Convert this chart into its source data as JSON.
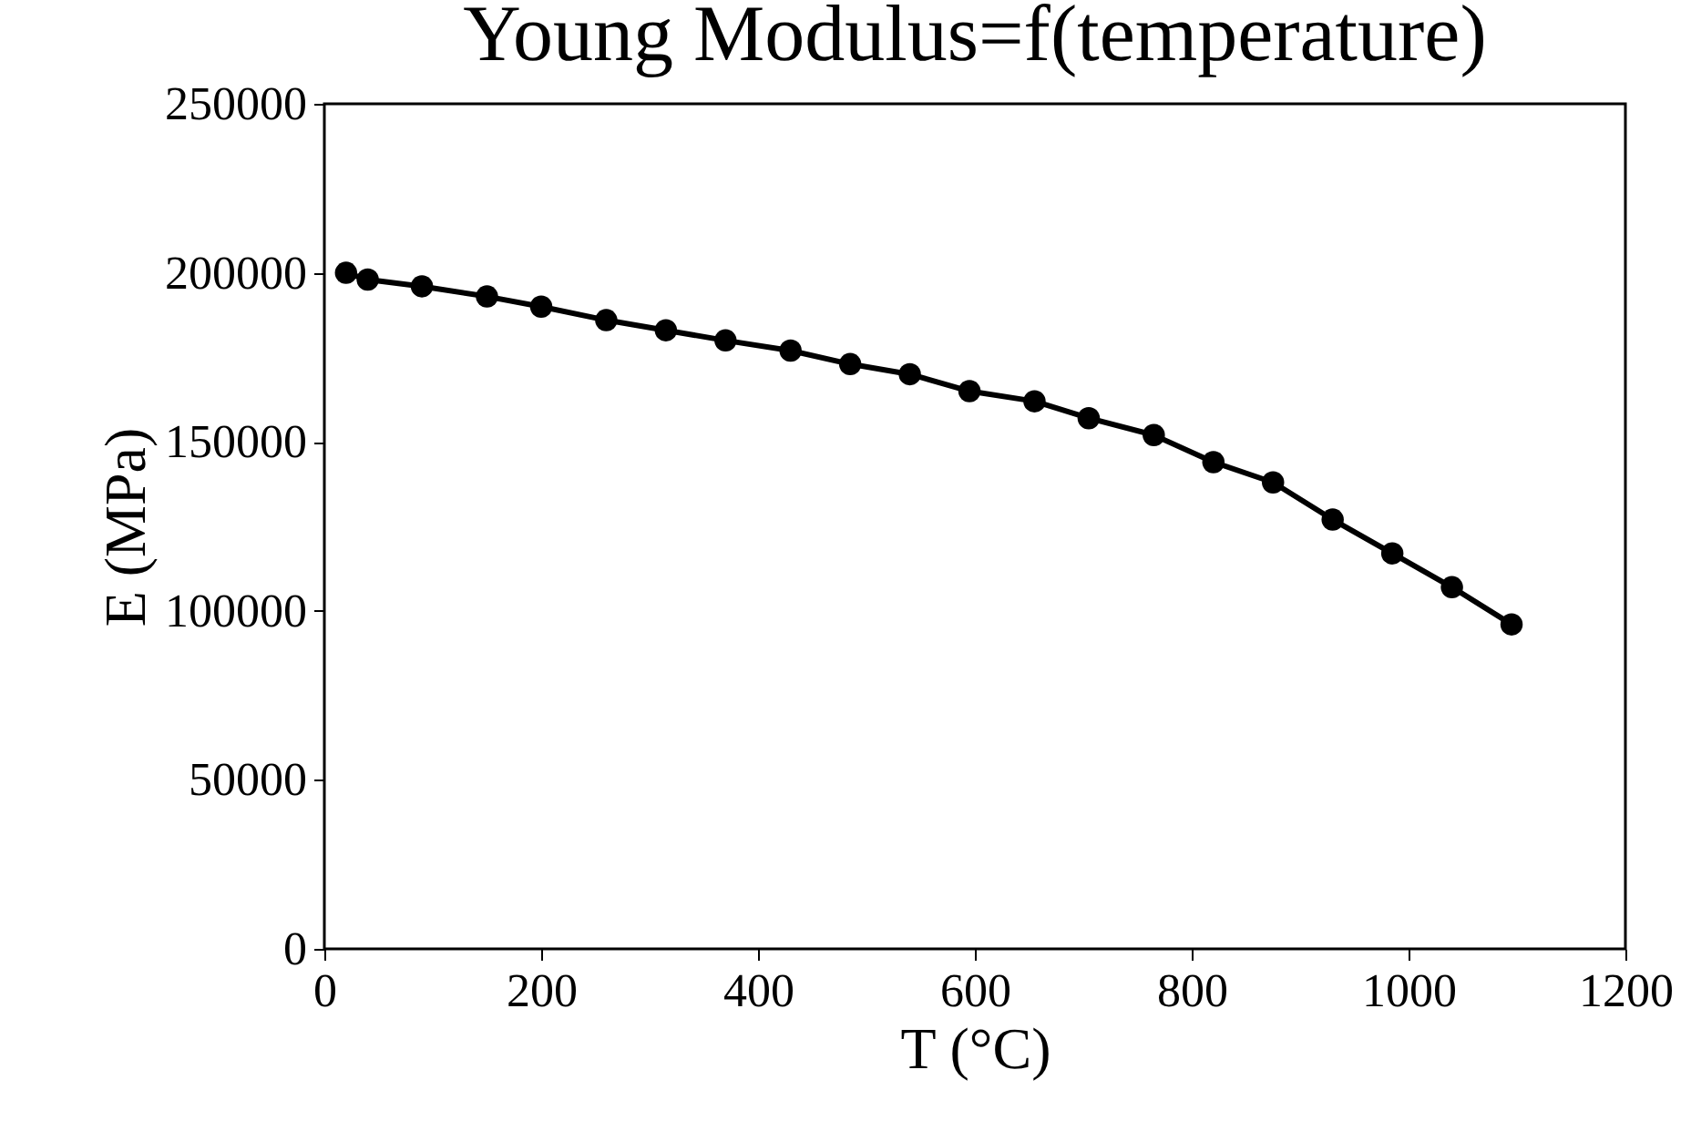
{
  "chart_data": {
    "type": "line",
    "title": "Young Modulus=f(temperature)",
    "xlabel": "T (°C)",
    "ylabel": "E (MPa)",
    "x": [
      20,
      40,
      90,
      150,
      200,
      260,
      315,
      370,
      430,
      485,
      540,
      595,
      655,
      705,
      765,
      820,
      875,
      930,
      985,
      1040,
      1095
    ],
    "series": [
      {
        "color": "#000000",
        "values": [
          200000,
          198000,
          196000,
          193000,
          190000,
          186000,
          183000,
          180000,
          177000,
          173000,
          170000,
          165000,
          162000,
          157000,
          152000,
          144000,
          138000,
          127000,
          117000,
          107000,
          96000
        ]
      }
    ],
    "xlim": [
      0,
      1200
    ],
    "xticks": [
      0,
      200,
      400,
      600,
      800,
      1000,
      1200
    ],
    "ylim": [
      0,
      250000
    ],
    "yticks": [
      0,
      50000,
      100000,
      150000,
      200000,
      250000
    ],
    "marker": "circle",
    "line_style": "solid",
    "grid": false,
    "legend": false
  }
}
